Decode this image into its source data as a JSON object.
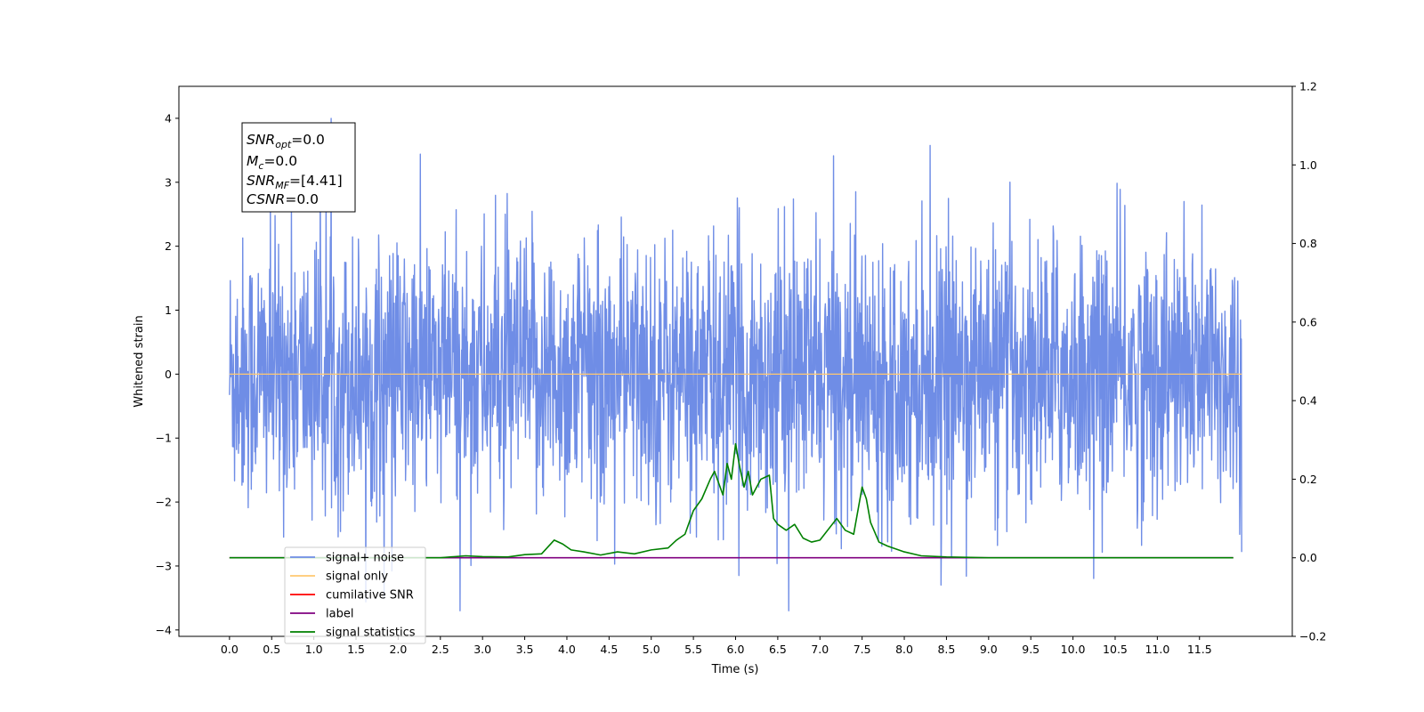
{
  "chart_data": {
    "type": "line",
    "title": "",
    "xlabel": "Time (s)",
    "ylabel": "Whitened strain",
    "xlim": [
      -0.6,
      12.6
    ],
    "ylim": [
      -4.1,
      4.5
    ],
    "y2lim": [
      -0.2,
      1.2
    ],
    "x_ticks": [
      "0.0",
      "0.5",
      "1.0",
      "1.5",
      "2.0",
      "2.5",
      "3.0",
      "3.5",
      "4.0",
      "4.5",
      "5.0",
      "5.5",
      "6.0",
      "6.5",
      "7.0",
      "7.5",
      "8.0",
      "8.5",
      "9.0",
      "9.5",
      "10.0",
      "10.5",
      "11.0",
      "11.5"
    ],
    "y_ticks": [
      "4",
      "3",
      "2",
      "1",
      "0",
      "−1",
      "−2",
      "−3",
      "−4"
    ],
    "y2_ticks": [
      "1.2",
      "1.0",
      "0.8",
      "0.6",
      "0.4",
      "0.2",
      "0.0",
      "−0.2"
    ],
    "grid": false,
    "legend_position": "lower-left",
    "annotation": {
      "snr_opt_main": "SNR",
      "snr_opt_sub": "opt",
      "snr_opt_value": "=0.0",
      "mc_main": "M",
      "mc_sub": "c",
      "mc_value": "=0.0",
      "snr_mf_main": "SNR",
      "snr_mf_sub": "MF",
      "snr_mf_value": "=[4.41]",
      "csnr_main": "CSNR",
      "csnr_value": "=0.0"
    },
    "series": [
      {
        "name": "signal+ noise",
        "color": "#6f8de6",
        "axis": "left",
        "description_range": [
          -3.7,
          4.1
        ],
        "time_range": [
          0.0,
          12.0
        ]
      },
      {
        "name": "signal only",
        "color": "#ffc870",
        "axis": "left",
        "value": 0.0
      },
      {
        "name": "cumilative SNR",
        "color": "#ff0000",
        "axis": "right",
        "value": 0.0
      },
      {
        "name": "label",
        "color": "#800080",
        "axis": "right",
        "value": 0.0
      },
      {
        "name": "signal statistics",
        "color": "#008000",
        "axis": "right",
        "x": [
          0.0,
          0.5,
          1.0,
          1.5,
          2.0,
          2.5,
          2.8,
          3.0,
          3.3,
          3.5,
          3.7,
          3.85,
          3.95,
          4.05,
          4.2,
          4.4,
          4.6,
          4.8,
          5.0,
          5.2,
          5.3,
          5.4,
          5.5,
          5.6,
          5.7,
          5.75,
          5.85,
          5.9,
          5.95,
          6.0,
          6.05,
          6.1,
          6.15,
          6.2,
          6.3,
          6.4,
          6.45,
          6.5,
          6.6,
          6.7,
          6.8,
          6.9,
          7.0,
          7.2,
          7.3,
          7.4,
          7.5,
          7.55,
          7.6,
          7.7,
          7.8,
          8.0,
          8.2,
          8.5,
          9.0,
          10.0,
          11.0,
          11.9
        ],
        "y": [
          0.0,
          0.0,
          0.0,
          0.0,
          0.0,
          0.0,
          0.005,
          0.003,
          0.002,
          0.008,
          0.01,
          0.045,
          0.035,
          0.02,
          0.015,
          0.007,
          0.015,
          0.01,
          0.02,
          0.025,
          0.045,
          0.06,
          0.12,
          0.15,
          0.2,
          0.22,
          0.16,
          0.24,
          0.2,
          0.29,
          0.23,
          0.18,
          0.22,
          0.16,
          0.2,
          0.21,
          0.1,
          0.085,
          0.07,
          0.085,
          0.05,
          0.04,
          0.045,
          0.1,
          0.07,
          0.06,
          0.18,
          0.15,
          0.09,
          0.04,
          0.03,
          0.015,
          0.005,
          0.002,
          0.0,
          0.0,
          0.0,
          0.0
        ]
      }
    ]
  }
}
